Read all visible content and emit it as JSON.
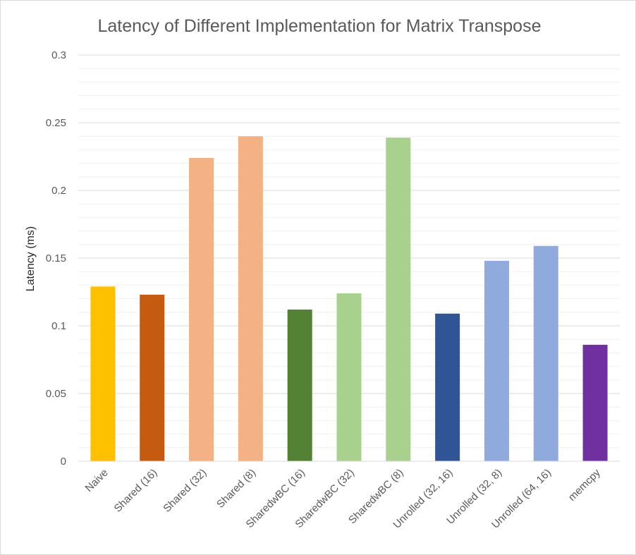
{
  "chart_data": {
    "type": "bar",
    "title": "Latency of Different Implementation for Matrix Transpose",
    "xlabel": "",
    "ylabel": "Latency (ms)",
    "ylim": [
      0,
      0.3
    ],
    "yticks": [
      "0",
      "0.05",
      "0.1",
      "0.15",
      "0.2",
      "0.25",
      "0.3"
    ],
    "grid": true,
    "legend": "none",
    "categories": [
      "Naive",
      "Shared (16)",
      "Shared (32)",
      "Shared (8)",
      "SharedwBC (16)",
      "SharedwBC (32)",
      "SharedwBC (8)",
      "Unrolled (32, 16)",
      "Unrolled (32, 8)",
      "Unrolled (64, 16)",
      "memcpy"
    ],
    "values": [
      0.129,
      0.123,
      0.224,
      0.24,
      0.112,
      0.124,
      0.239,
      0.109,
      0.148,
      0.159,
      0.086
    ],
    "colors": [
      "#ffc000",
      "#c55a11",
      "#f4b183",
      "#f4b183",
      "#548235",
      "#a9d18e",
      "#a9d18e",
      "#2f5597",
      "#8faadc",
      "#8faadc",
      "#7030a0"
    ]
  }
}
